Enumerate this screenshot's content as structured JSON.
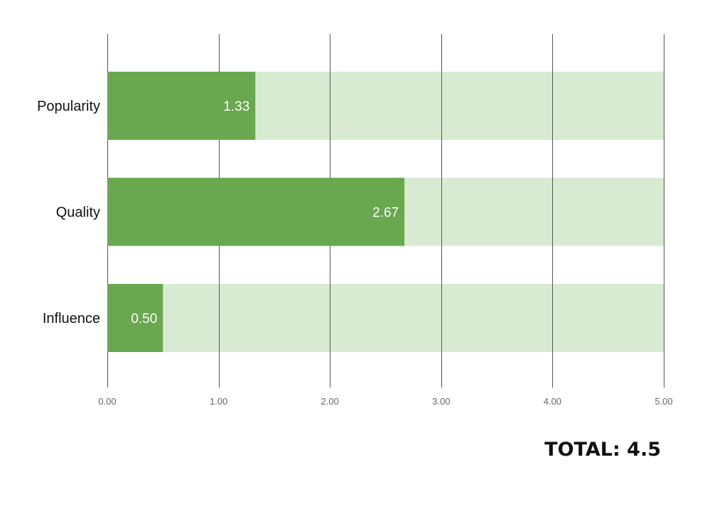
{
  "chart_data": {
    "type": "bar",
    "orientation": "horizontal",
    "categories": [
      "Popularity",
      "Quality",
      "Influence"
    ],
    "values": [
      1.33,
      2.67,
      0.5
    ],
    "value_labels": [
      "1.33",
      "2.67",
      "0.50"
    ],
    "xlim": [
      0,
      5
    ],
    "xticks": [
      0,
      1,
      2,
      3,
      4,
      5
    ],
    "xtick_labels": [
      "0.00",
      "1.00",
      "2.00",
      "3.00",
      "4.00",
      "5.00"
    ],
    "background_max": 5,
    "grid": true,
    "legend": "none",
    "title": "",
    "xlabel": "",
    "ylabel": "",
    "colors": {
      "bar": "#6aa84f",
      "bar_background": "#d9ead3",
      "grid": "#555555",
      "value_label": "#ffffff"
    }
  },
  "total": {
    "text": "TOTAL: 4.5"
  }
}
